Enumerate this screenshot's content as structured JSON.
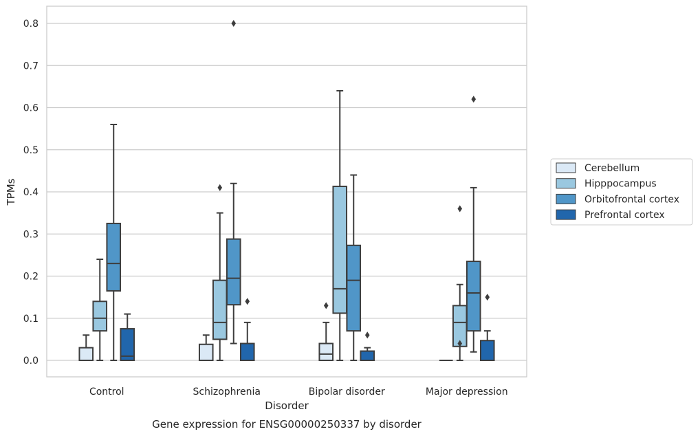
{
  "chart_data": {
    "type": "box",
    "title": "",
    "caption": "Gene expression for ENSG00000250337 by disorder",
    "xlabel": "Disorder",
    "ylabel": "TPMs",
    "ylim": [
      -0.04,
      0.84
    ],
    "yticks": [
      "0.0",
      "0.1",
      "0.2",
      "0.3",
      "0.4",
      "0.5",
      "0.6",
      "0.7",
      "0.8"
    ],
    "grid": "horizontal",
    "legend_position": "right",
    "categories": [
      "Control",
      "Schizophrenia",
      "Bipolar disorder",
      "Major depression"
    ],
    "series": [
      {
        "name": "Cerebellum",
        "color": "#dbe9f6",
        "boxes": [
          {
            "low": 0.0,
            "q1": 0.0,
            "median": 0.0,
            "q3": 0.03,
            "high": 0.06,
            "outliers": []
          },
          {
            "low": 0.0,
            "q1": 0.0,
            "median": 0.0,
            "q3": 0.038,
            "high": 0.06,
            "outliers": []
          },
          {
            "low": 0.0,
            "q1": 0.0,
            "median": 0.015,
            "q3": 0.04,
            "high": 0.09,
            "outliers": [
              0.13
            ]
          },
          {
            "low": 0.0,
            "q1": 0.0,
            "median": 0.0,
            "q3": 0.0,
            "high": 0.0,
            "outliers": []
          }
        ]
      },
      {
        "name": "Hipppocampus",
        "color": "#9ac8e0",
        "boxes": [
          {
            "low": 0.0,
            "q1": 0.07,
            "median": 0.1,
            "q3": 0.14,
            "high": 0.24,
            "outliers": []
          },
          {
            "low": 0.0,
            "q1": 0.05,
            "median": 0.09,
            "q3": 0.19,
            "high": 0.35,
            "outliers": [
              0.41
            ]
          },
          {
            "low": 0.0,
            "q1": 0.112,
            "median": 0.17,
            "q3": 0.413,
            "high": 0.64,
            "outliers": []
          },
          {
            "low": 0.0,
            "q1": 0.033,
            "median": 0.09,
            "q3": 0.13,
            "high": 0.18,
            "outliers": [
              0.04,
              0.36
            ]
          }
        ]
      },
      {
        "name": "Orbitofrontal cortex",
        "color": "#5096c8",
        "boxes": [
          {
            "low": 0.0,
            "q1": 0.165,
            "median": 0.23,
            "q3": 0.325,
            "high": 0.56,
            "outliers": []
          },
          {
            "low": 0.04,
            "q1": 0.132,
            "median": 0.195,
            "q3": 0.288,
            "high": 0.42,
            "outliers": [
              0.8
            ]
          },
          {
            "low": 0.0,
            "q1": 0.07,
            "median": 0.19,
            "q3": 0.273,
            "high": 0.44,
            "outliers": []
          },
          {
            "low": 0.02,
            "q1": 0.07,
            "median": 0.16,
            "q3": 0.235,
            "high": 0.41,
            "outliers": [
              0.62
            ]
          }
        ]
      },
      {
        "name": "Prefrontal cortex",
        "color": "#2166ac",
        "boxes": [
          {
            "low": 0.0,
            "q1": 0.0,
            "median": 0.01,
            "q3": 0.075,
            "high": 0.11,
            "outliers": []
          },
          {
            "low": 0.0,
            "q1": 0.0,
            "median": 0.0,
            "q3": 0.04,
            "high": 0.09,
            "outliers": [
              0.14
            ]
          },
          {
            "low": 0.0,
            "q1": 0.0,
            "median": 0.0,
            "q3": 0.022,
            "high": 0.03,
            "outliers": [
              0.06
            ]
          },
          {
            "low": 0.0,
            "q1": 0.0,
            "median": 0.0,
            "q3": 0.047,
            "high": 0.07,
            "outliers": [
              0.15
            ]
          }
        ]
      }
    ]
  }
}
